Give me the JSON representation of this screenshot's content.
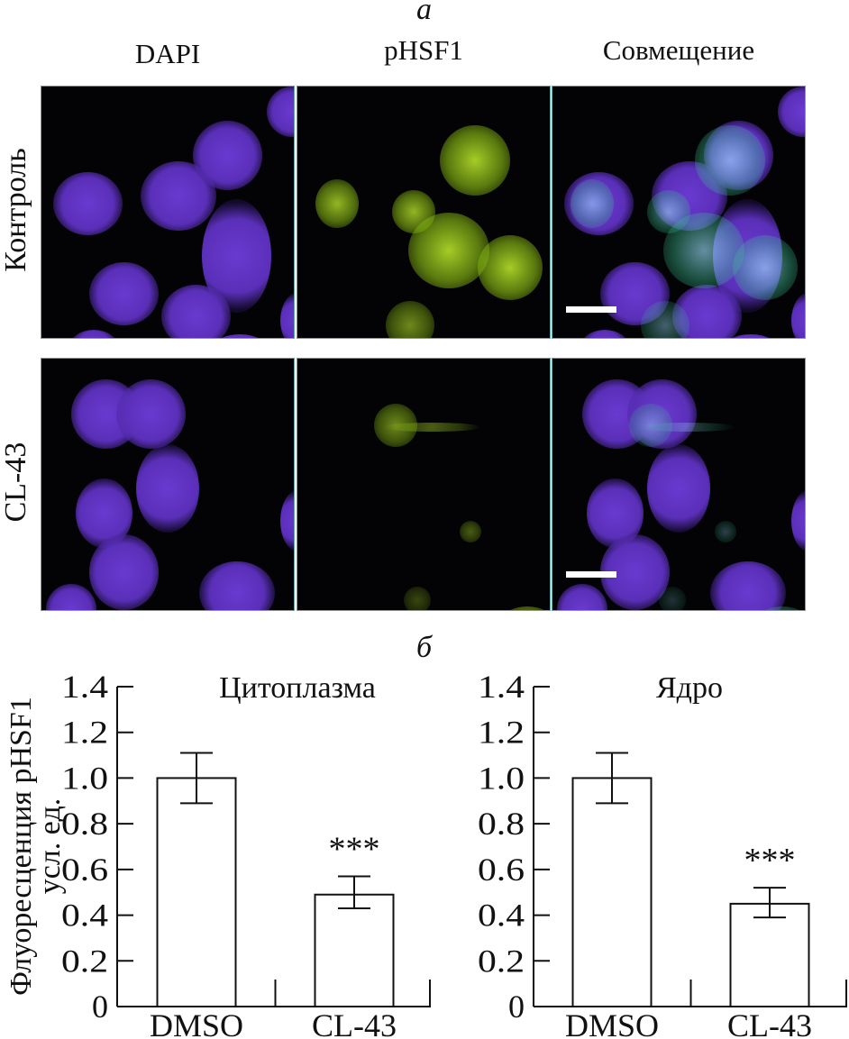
{
  "figure_a": {
    "letter": "а",
    "columns": [
      "DAPI",
      "pHSF1",
      "Совмещение"
    ],
    "rows": [
      "Контроль",
      "CL-43"
    ],
    "channel_colors": {
      "dapi": "#5a2fb8",
      "phsf1": "#b7e32a",
      "merge_overlap": "#9fe0ff"
    }
  },
  "figure_b": {
    "letter": "б",
    "ylabel_line1": "Флуоресценция pHSF1",
    "ylabel_line2": "усл. ед."
  },
  "chart_data": [
    {
      "type": "bar",
      "title": "Цитоплазма",
      "categories": [
        "DMSO",
        "CL-43"
      ],
      "values": [
        1.0,
        0.49
      ],
      "error_low": [
        0.89,
        0.43
      ],
      "error_high": [
        1.11,
        0.57
      ],
      "annotations": [
        "",
        "***"
      ],
      "ylim": [
        0,
        1.4
      ],
      "yticks": [
        "0",
        "0.2",
        "0.4",
        "0.6",
        "0.8",
        "1.0",
        "1.2",
        "1.4"
      ],
      "ylabel": "Флуоресценция pHSF1 усл. ед.",
      "grid": false,
      "bar_color": "#ffffff"
    },
    {
      "type": "bar",
      "title": "Ядро",
      "categories": [
        "DMSO",
        "CL-43"
      ],
      "values": [
        1.0,
        0.45
      ],
      "error_low": [
        0.89,
        0.39
      ],
      "error_high": [
        1.11,
        0.52
      ],
      "annotations": [
        "",
        "***"
      ],
      "ylim": [
        0,
        1.4
      ],
      "yticks": [
        "0",
        "0.2",
        "0.4",
        "0.6",
        "0.8",
        "1.0",
        "1.2",
        "1.4"
      ],
      "grid": false,
      "bar_color": "#ffffff"
    }
  ]
}
